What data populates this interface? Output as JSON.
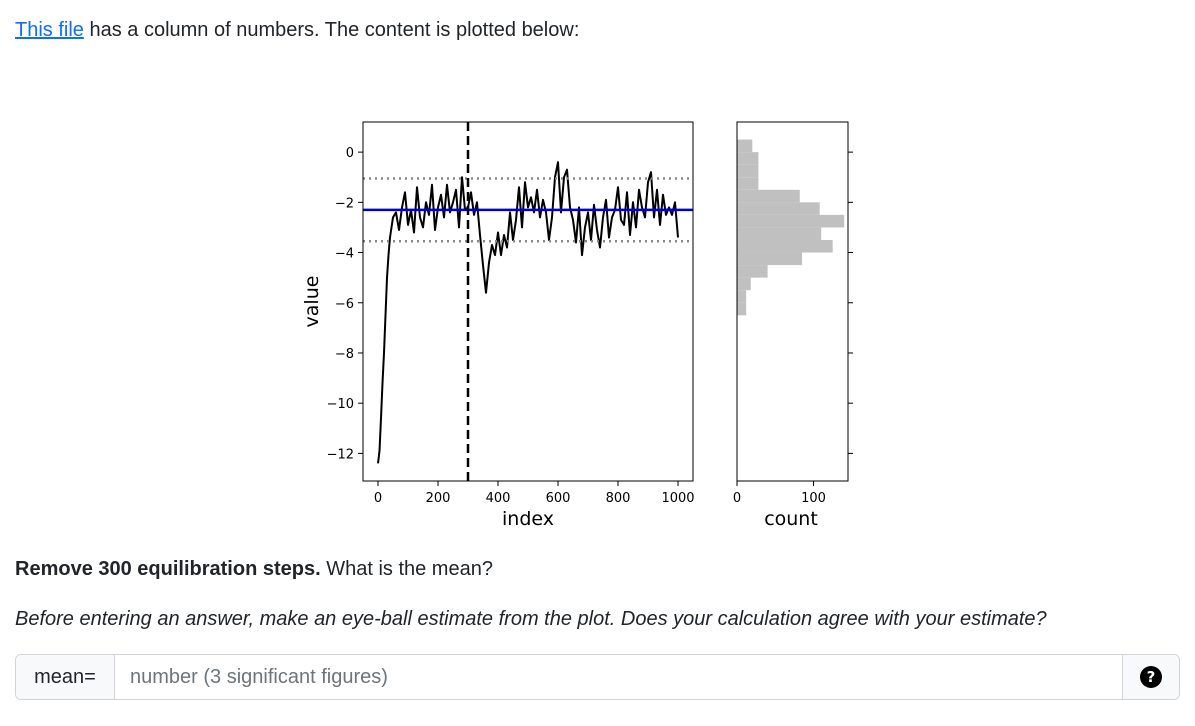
{
  "intro": {
    "link_text": "This file",
    "rest_text": " has a column of numbers. The content is plotted below:"
  },
  "chart_data": [
    {
      "type": "line",
      "xlabel": "index",
      "ylabel": "value",
      "x_ticks": [
        "0",
        "200",
        "400",
        "600",
        "800",
        "1000"
      ],
      "y_ticks": [
        "0",
        "−2",
        "−4",
        "−6",
        "−8",
        "−10",
        "−12"
      ],
      "xlim": [
        -50,
        1050
      ],
      "ylim": [
        -13.1,
        1.2
      ],
      "series": [
        {
          "x": [
            0,
            5,
            10,
            15,
            20,
            25,
            30,
            35,
            40,
            50,
            60,
            70,
            80,
            90,
            100,
            110,
            120,
            130,
            140,
            150,
            160,
            170,
            180,
            190,
            200,
            210,
            220,
            230,
            240,
            250,
            260,
            270,
            280,
            290,
            300,
            310,
            320,
            330,
            340,
            350,
            360,
            370,
            380,
            390,
            400,
            410,
            420,
            430,
            440,
            450,
            460,
            470,
            480,
            490,
            500,
            510,
            520,
            530,
            540,
            550,
            560,
            570,
            580,
            590,
            600,
            610,
            620,
            630,
            640,
            650,
            660,
            670,
            680,
            690,
            700,
            710,
            720,
            730,
            740,
            750,
            760,
            770,
            780,
            790,
            800,
            810,
            820,
            830,
            840,
            850,
            860,
            870,
            880,
            890,
            900,
            910,
            920,
            930,
            940,
            950,
            960,
            970,
            980,
            990,
            1000
          ],
          "y": [
            -12.4,
            -11.9,
            -10.6,
            -9.2,
            -8.0,
            -6.5,
            -5.0,
            -4.1,
            -3.4,
            -2.6,
            -2.4,
            -3.1,
            -2.2,
            -1.6,
            -2.9,
            -2.3,
            -3.2,
            -1.4,
            -2.6,
            -3.0,
            -2.0,
            -2.5,
            -1.3,
            -3.1,
            -2.2,
            -1.7,
            -2.6,
            -1.3,
            -2.4,
            -2.0,
            -1.5,
            -3.0,
            -1.0,
            -2.3,
            -2.2,
            -1.6,
            -2.5,
            -2.0,
            -3.3,
            -4.5,
            -5.6,
            -4.4,
            -3.7,
            -4.1,
            -3.2,
            -4.1,
            -3.3,
            -3.8,
            -2.4,
            -3.5,
            -2.7,
            -1.4,
            -3.0,
            -1.2,
            -2.2,
            -1.8,
            -2.4,
            -1.5,
            -2.6,
            -1.9,
            -2.4,
            -3.5,
            -2.6,
            -1.0,
            -0.4,
            -2.4,
            -1.0,
            -0.7,
            -2.2,
            -2.7,
            -3.6,
            -2.2,
            -4.1,
            -3.0,
            -2.4,
            -3.5,
            -2.1,
            -3.1,
            -3.8,
            -2.6,
            -1.9,
            -3.4,
            -2.6,
            -2.3,
            -1.4,
            -2.7,
            -2.9,
            -1.6,
            -3.3,
            -2.0,
            -3.0,
            -1.5,
            -2.2,
            -2.6,
            -1.2,
            -0.8,
            -2.6,
            -1.5,
            -2.9,
            -1.7,
            -2.5,
            -2.2,
            -2.5,
            -2.0,
            -3.4
          ]
        }
      ],
      "mean_line": -2.3,
      "std_lines": [
        -1.05,
        -3.55
      ],
      "vline": 300
    },
    {
      "type": "bar",
      "orientation": "horizontal",
      "xlabel": "count",
      "x_ticks": [
        "0",
        "100"
      ],
      "xlim": [
        0,
        145
      ],
      "bin_edges": [
        -6.5,
        -6.0,
        -5.5,
        -5.0,
        -4.5,
        -4.0,
        -3.5,
        -3.0,
        -2.5,
        -2.0,
        -1.5,
        -1.0,
        -0.5,
        0.0,
        0.5
      ],
      "values": [
        12,
        12,
        18,
        40,
        85,
        125,
        110,
        140,
        108,
        82,
        28,
        28,
        28,
        20
      ]
    }
  ],
  "question": {
    "bold": "Remove 300 equilibration steps.",
    "text": " What is the mean?"
  },
  "hint": "Before entering an answer, make an eye-ball estimate from the plot. Does your calculation agree with your estimate?",
  "answer": {
    "prefix": "mean=",
    "placeholder": "number (3 significant figures)",
    "help_symbol": "?"
  }
}
